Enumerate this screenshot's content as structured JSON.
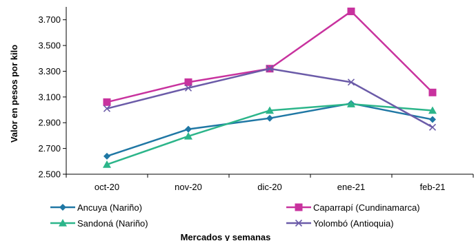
{
  "chart_data": {
    "type": "line",
    "title": "",
    "xlabel": "Mercados y semanas",
    "ylabel": "Valor en pesos por kilo",
    "categories": [
      "oct-20",
      "nov-20",
      "dic-20",
      "ene-21",
      "feb-21"
    ],
    "ylim": [
      2500,
      3800
    ],
    "yticks": [
      2500,
      2700,
      2900,
      3100,
      3300,
      3500,
      3700
    ],
    "ytick_labels": [
      "2.500",
      "2.700",
      "2.900",
      "3.100",
      "3.300",
      "3.500",
      "3.700"
    ],
    "grid": false,
    "legend_position": "bottom",
    "series": [
      {
        "name": "Ancuya (Nariño)",
        "color": "#1f77a4",
        "marker": "diamond",
        "values": [
          2640,
          2850,
          2935,
          3050,
          2925
        ]
      },
      {
        "name": "Caparrapí (Cundinamarca)",
        "color": "#c8329e",
        "marker": "square",
        "values": [
          3060,
          3215,
          3320,
          3765,
          3135
        ]
      },
      {
        "name": "Sandoná (Nariño)",
        "color": "#2cb58a",
        "marker": "triangle",
        "values": [
          2575,
          2795,
          2995,
          3045,
          2995
        ]
      },
      {
        "name": "Yolombó (Antioquia)",
        "color": "#6b5ba8",
        "marker": "x",
        "values": [
          3010,
          3170,
          3320,
          3215,
          2865
        ]
      }
    ]
  }
}
